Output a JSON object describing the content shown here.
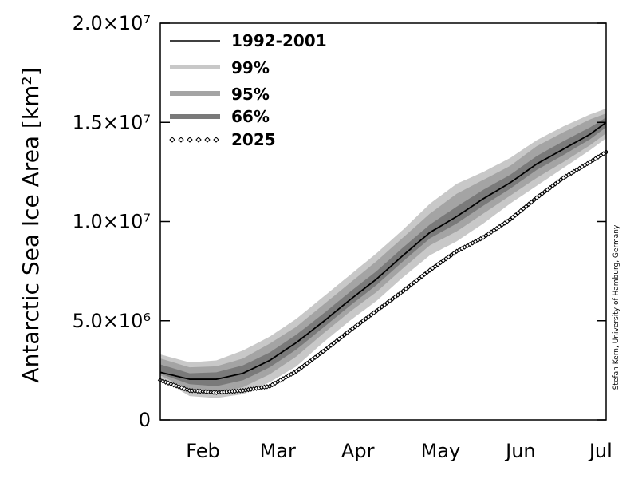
{
  "chart_data": {
    "type": "line",
    "title": "",
    "ylabel": "Antarctic Sea Ice Area [km²]",
    "xlabel": "",
    "x_unit": "day_of_year",
    "xlim": [
      29,
      196
    ],
    "ylim": [
      0,
      20000000
    ],
    "y_ticks": [
      {
        "value": 0,
        "label": "0"
      },
      {
        "value": 5000000,
        "label": "5.0×10⁶"
      },
      {
        "value": 10000000,
        "label": "1.0×10⁷"
      },
      {
        "value": 15000000,
        "label": "1.5×10⁷"
      },
      {
        "value": 20000000,
        "label": "2.0×10⁷"
      }
    ],
    "month_labels": [
      {
        "day": 45,
        "label": "Feb"
      },
      {
        "day": 73,
        "label": "Mar"
      },
      {
        "day": 103,
        "label": "Apr"
      },
      {
        "day": 134,
        "label": "May"
      },
      {
        "day": 164,
        "label": "Jun"
      },
      {
        "day": 194,
        "label": "Jul"
      }
    ],
    "x": [
      29,
      40,
      50,
      60,
      70,
      80,
      90,
      100,
      110,
      120,
      130,
      140,
      150,
      160,
      170,
      180,
      190,
      196
    ],
    "series": [
      {
        "name": "1992-2001",
        "style": "line",
        "color": "#000000",
        "values": [
          2400000,
          2050000,
          2050000,
          2350000,
          3000000,
          3900000,
          4950000,
          6050000,
          7100000,
          8300000,
          9450000,
          10250000,
          11150000,
          11950000,
          12900000,
          13650000,
          14400000,
          15000000
        ]
      },
      {
        "name": "2025",
        "style": "markers",
        "marker": "diamond",
        "color": "#000000",
        "values": [
          2000000,
          1480000,
          1380000,
          1480000,
          1700000,
          2450000,
          3450000,
          4500000,
          5500000,
          6500000,
          7550000,
          8500000,
          9200000,
          10100000,
          11200000,
          12200000,
          13000000,
          13500000
        ]
      }
    ],
    "bands": [
      {
        "name": "99%",
        "color": "#c8c8c8",
        "lower": [
          2100000,
          1200000,
          1100000,
          1300000,
          1900000,
          2700000,
          3900000,
          5000000,
          6000000,
          7200000,
          8300000,
          9000000,
          9900000,
          10900000,
          11800000,
          12700000,
          13600000,
          14200000
        ],
        "upper": [
          3300000,
          2900000,
          3000000,
          3500000,
          4200000,
          5100000,
          6200000,
          7300000,
          8400000,
          9600000,
          10900000,
          11900000,
          12500000,
          13200000,
          14100000,
          14800000,
          15400000,
          15700000
        ]
      },
      {
        "name": "95%",
        "color": "#a4a4a4",
        "lower": [
          2250000,
          1500000,
          1350000,
          1650000,
          2300000,
          3200000,
          4350000,
          5450000,
          6450000,
          7650000,
          8800000,
          9500000,
          10400000,
          11300000,
          12200000,
          13000000,
          13850000,
          14450000
        ],
        "upper": [
          3100000,
          2650000,
          2700000,
          3100000,
          3850000,
          4700000,
          5800000,
          6900000,
          8000000,
          9200000,
          10400000,
          11400000,
          12100000,
          12800000,
          13800000,
          14500000,
          15150000,
          15450000
        ]
      },
      {
        "name": "66%",
        "color": "#7a7a7a",
        "lower": [
          2330000,
          1800000,
          1700000,
          2000000,
          2650000,
          3550000,
          4650000,
          5750000,
          6800000,
          8000000,
          9150000,
          9900000,
          10800000,
          11650000,
          12600000,
          13350000,
          14150000,
          14750000
        ],
        "upper": [
          2800000,
          2350000,
          2400000,
          2750000,
          3400000,
          4300000,
          5350000,
          6450000,
          7500000,
          8700000,
          9850000,
          10750000,
          11600000,
          12350000,
          13300000,
          14050000,
          14750000,
          15250000
        ]
      }
    ],
    "legend": {
      "position": "top-left",
      "entries": [
        "1992-2001",
        "99%",
        "95%",
        "66%",
        "2025"
      ]
    },
    "grid": false,
    "credit": "Stefan Kern, University of Hamburg, Germany"
  }
}
